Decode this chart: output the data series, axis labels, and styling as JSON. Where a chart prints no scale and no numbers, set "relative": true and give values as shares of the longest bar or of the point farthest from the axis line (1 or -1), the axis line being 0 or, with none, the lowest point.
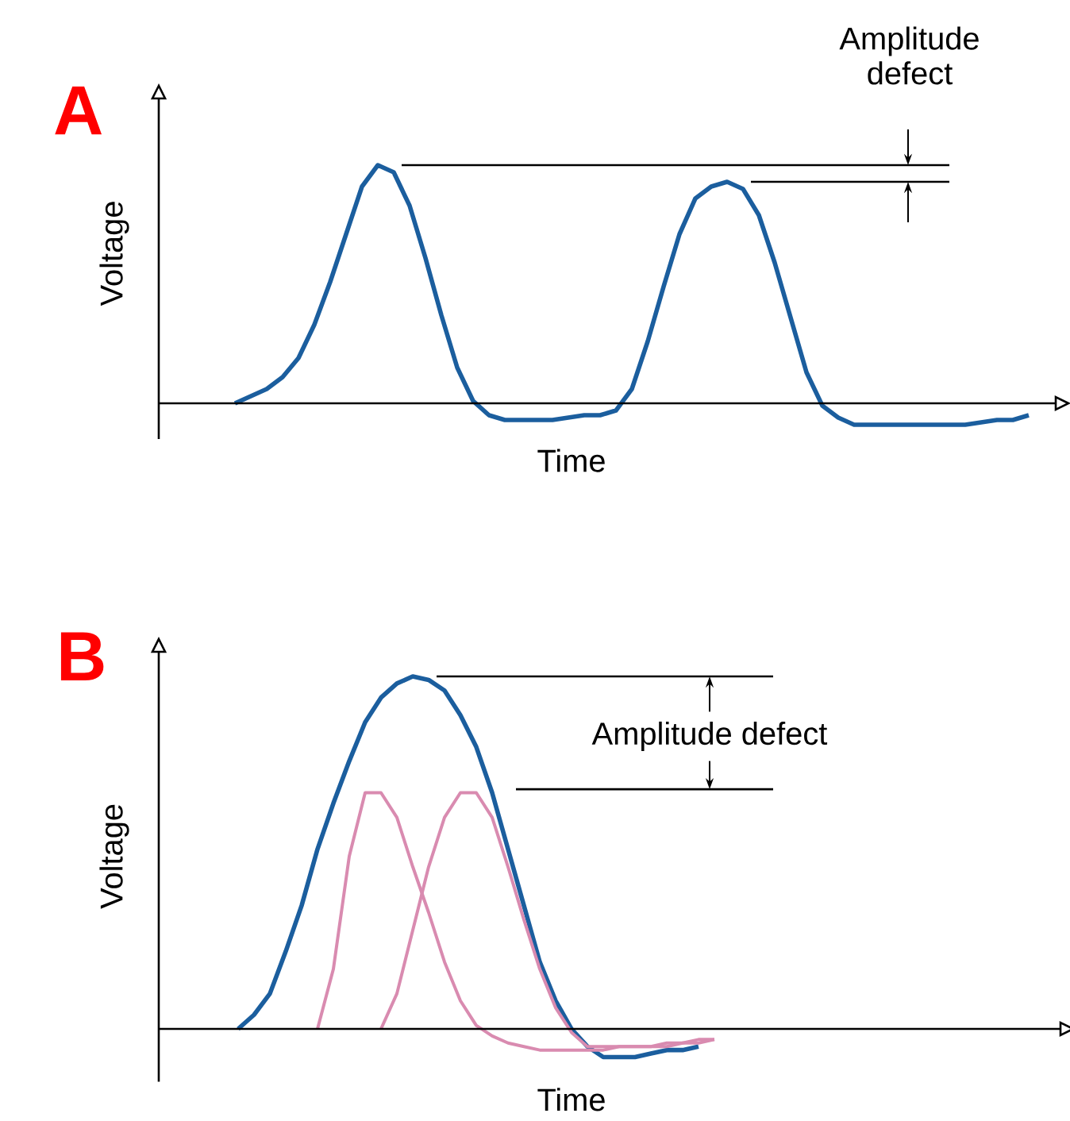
{
  "chart_data": [
    {
      "type": "line",
      "title": "A",
      "xlabel": "Time",
      "ylabel": "Voltage",
      "relative": true,
      "categories": [
        null,
        null,
        null,
        null,
        null,
        null,
        null,
        null,
        null,
        null,
        null,
        null,
        null,
        null,
        null,
        null,
        null,
        null,
        null,
        null,
        null,
        null,
        null,
        null,
        null,
        null,
        null,
        null,
        null,
        null,
        null,
        null,
        null,
        null,
        null,
        null,
        null,
        null,
        null,
        null,
        null,
        null,
        null,
        null,
        null,
        null,
        null,
        null,
        null,
        null,
        null
      ],
      "series": [
        {
          "color": "#1b5e9e",
          "values": [
            0,
            0.03,
            0.06,
            0.11,
            0.19,
            0.33,
            0.51,
            0.71,
            0.91,
            1.0,
            0.97,
            0.83,
            0.61,
            0.37,
            0.15,
            0.01,
            -0.05,
            -0.07,
            -0.07,
            -0.07,
            -0.07,
            -0.06,
            -0.05,
            -0.05,
            -0.03,
            0.06,
            0.26,
            0.49,
            0.71,
            0.86,
            0.91,
            0.93,
            0.9,
            0.79,
            0.59,
            0.36,
            0.13,
            -0.01,
            -0.06,
            -0.09,
            -0.09,
            -0.09,
            -0.09,
            -0.09,
            -0.09,
            -0.09,
            -0.09,
            -0.08,
            -0.07,
            -0.07,
            -0.05
          ]
        }
      ],
      "ref_lines": [
        {
          "axis": "y",
          "value": 1.0
        },
        {
          "axis": "y",
          "value": 0.93
        }
      ],
      "annotations": [
        "Amplitude defect"
      ]
    },
    {
      "type": "line",
      "title": "B",
      "xlabel": "Time",
      "ylabel": "Voltage",
      "relative": true,
      "categories": [
        null,
        null,
        null,
        null,
        null,
        null,
        null,
        null,
        null,
        null,
        null,
        null,
        null,
        null,
        null,
        null,
        null,
        null,
        null,
        null,
        null,
        null,
        null,
        null,
        null,
        null,
        null,
        null,
        null,
        null,
        null
      ],
      "series": [
        {
          "color": "#1b5e9e",
          "values": [
            0,
            0.04,
            0.1,
            0.22,
            0.35,
            0.51,
            0.64,
            0.76,
            0.87,
            0.94,
            0.98,
            1.0,
            0.99,
            0.96,
            0.89,
            0.8,
            0.67,
            0.51,
            0.35,
            0.19,
            0.08,
            0,
            -0.05,
            -0.08,
            -0.08,
            -0.08,
            -0.07,
            -0.06,
            -0.06,
            -0.05,
            null
          ]
        },
        {
          "color": "#d98bb0",
          "values": [
            null,
            null,
            null,
            null,
            null,
            0,
            0.17,
            0.49,
            0.67,
            0.67,
            0.6,
            0.46,
            0.33,
            0.19,
            0.08,
            0.01,
            -0.02,
            -0.04,
            -0.05,
            -0.06,
            -0.06,
            -0.06,
            -0.06,
            -0.06,
            -0.05,
            -0.05,
            -0.05,
            -0.04,
            -0.04,
            -0.03,
            -0.03
          ]
        },
        {
          "color": "#d98bb0",
          "values": [
            null,
            null,
            null,
            null,
            null,
            null,
            null,
            null,
            null,
            0,
            0.1,
            0.28,
            0.46,
            0.6,
            0.67,
            0.67,
            0.6,
            0.46,
            0.31,
            0.17,
            0.06,
            -0.01,
            -0.05,
            -0.05,
            -0.05,
            -0.05,
            -0.05,
            -0.05,
            -0.04,
            -0.04,
            -0.03
          ]
        }
      ],
      "ref_lines": [
        {
          "axis": "y",
          "value": 1.0
        },
        {
          "axis": "y",
          "value": 0.68
        }
      ],
      "annotations": [
        "Amplitude defect"
      ]
    }
  ]
}
